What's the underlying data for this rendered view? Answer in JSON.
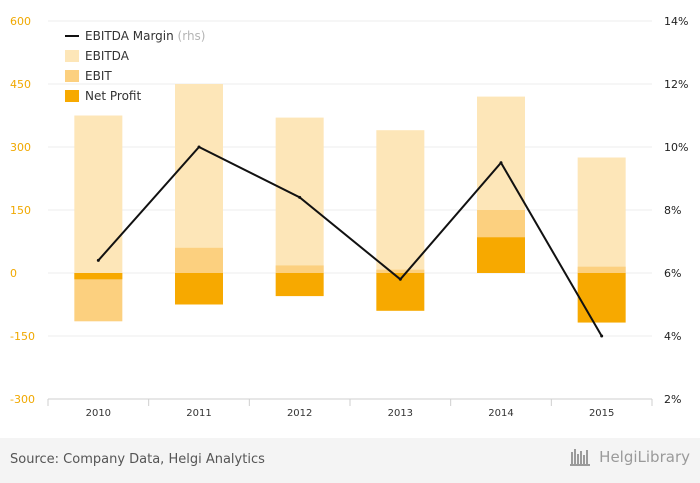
{
  "chart_data": {
    "type": "bar",
    "categories": [
      "2010",
      "2011",
      "2012",
      "2013",
      "2014",
      "2015"
    ],
    "series": [
      {
        "name": "EBITDA",
        "type": "bar",
        "axis": "left",
        "color": "#fde6b8",
        "values": [
          375,
          450,
          370,
          340,
          420,
          275
        ]
      },
      {
        "name": "EBIT",
        "type": "bar",
        "axis": "left",
        "color": "#fcd07f",
        "values": [
          -115,
          60,
          18,
          8,
          150,
          15
        ]
      },
      {
        "name": "Net Profit",
        "type": "bar",
        "axis": "left",
        "color": "#f7a900",
        "values": [
          -15,
          -75,
          -55,
          -90,
          85,
          -118
        ]
      },
      {
        "name": "EBITDA Margin",
        "type": "line",
        "axis": "right",
        "color": "#111111",
        "values": [
          6.4,
          10.0,
          8.4,
          5.8,
          9.5,
          4.0
        ]
      }
    ],
    "left_axis": {
      "min": -300,
      "max": 600,
      "ticks": [
        "600",
        "450",
        "300",
        "150",
        "0",
        "-150",
        "-300"
      ],
      "tick_values": [
        600,
        450,
        300,
        150,
        0,
        -150,
        -300
      ]
    },
    "right_axis": {
      "min": 2,
      "max": 14,
      "ticks": [
        "14%",
        "12%",
        "10%",
        "8%",
        "6%",
        "4%",
        "2%"
      ],
      "tick_values": [
        14,
        12,
        10,
        8,
        6,
        4,
        2
      ]
    },
    "legend": [
      {
        "label": "EBITDA Margin",
        "note": "(rhs)",
        "kind": "line",
        "color": "#111111"
      },
      {
        "label": "EBITDA",
        "note": "",
        "kind": "box",
        "color": "#fde6b8"
      },
      {
        "label": "EBIT",
        "note": "",
        "kind": "box",
        "color": "#fcd07f"
      },
      {
        "label": "Net Profit",
        "note": "",
        "kind": "box",
        "color": "#f7a900"
      }
    ],
    "legend_position": "top-left",
    "grid": true
  },
  "footer": {
    "source": "Source: Company Data, Helgi Analytics",
    "logo": "HelgiLibrary"
  }
}
